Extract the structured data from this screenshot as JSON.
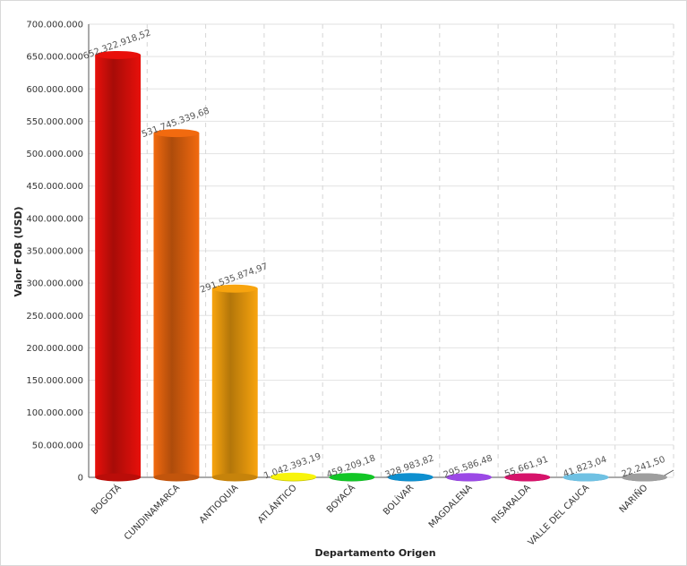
{
  "chart_data": {
    "type": "bar",
    "style": "3d-cylinder",
    "title": "",
    "xlabel": "Departamento Origen",
    "ylabel": "Valor FOB (USD)",
    "ylim": [
      0,
      700000000
    ],
    "yticks": [
      0,
      50000000,
      100000000,
      150000000,
      200000000,
      250000000,
      300000000,
      350000000,
      400000000,
      450000000,
      500000000,
      550000000,
      600000000,
      650000000,
      700000000
    ],
    "ytick_labels": [
      "0",
      "50.000.000",
      "100.000.000",
      "150.000.000",
      "200.000.000",
      "250.000.000",
      "300.000.000",
      "350.000.000",
      "400.000.000",
      "450.000.000",
      "500.000.000",
      "550.000.000",
      "600.000.000",
      "650.000.000",
      "700.000.000"
    ],
    "grid": true,
    "legend": "none",
    "categories": [
      "BOGOTÁ",
      "CUNDINAMARCA",
      "ANTIOQUIA",
      "ATLÁNTICO",
      "BOYACÁ",
      "BOLÍVAR",
      "MAGDALENA",
      "RISARALDA",
      "VALLE DEL CAUCA",
      "NARIÑO"
    ],
    "values": [
      652322918.52,
      531745339.68,
      291535874.97,
      1042393.19,
      459209.18,
      328983.82,
      295586.48,
      55661.91,
      41823.04,
      22241.5
    ],
    "value_labels": [
      "652.322.918,52",
      "531.745.339,68",
      "291.535.874,97",
      "1.042.393,19",
      "459.209,18",
      "328.983,82",
      "295.586,48",
      "55.661,91",
      "41.823,04",
      "22.241,50"
    ],
    "colors": [
      "#e8100b",
      "#f26a0f",
      "#f8a40e",
      "#f8f40a",
      "#12c626",
      "#0d8fcf",
      "#9b49e6",
      "#d6136a",
      "#6fc1e3",
      "#9e9e9e"
    ]
  }
}
